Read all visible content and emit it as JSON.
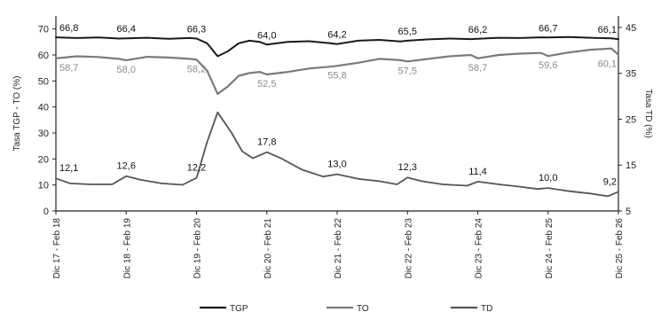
{
  "chart_data": {
    "type": "line",
    "x_categories": [
      "Dic 17 - Feb 18",
      "Dic 18 - Feb 19",
      "Dic 19 - Feb 20",
      "Dic 20 - Feb 21",
      "Dic 21 - Feb 22",
      "Dic 22 - Feb 23",
      "Dic 23 - Feb 24",
      "Dic 24 - Feb 25",
      "Dic 25 - Feb 26"
    ],
    "ylabel_left": "Tasa TGP - TO (%)",
    "ylabel_right": "Tasa TD (%)",
    "ylim_left": [
      0,
      75
    ],
    "yticks_left": [
      0,
      10,
      20,
      30,
      40,
      50,
      60,
      70
    ],
    "ylim_right": [
      5,
      47.5
    ],
    "yticks_right": [
      5,
      15,
      25,
      35,
      45
    ],
    "series": [
      {
        "name": "TGP",
        "axis": "left",
        "color": "#1a1a1a",
        "labels": [
          "66,8",
          "66,4",
          "66,3",
          "64,0",
          "64,2",
          "65,5",
          "66,2",
          "66,7",
          "66,1"
        ],
        "x": [
          0,
          0.3,
          0.6,
          0.9,
          1,
          1.3,
          1.6,
          1.9,
          2,
          2.15,
          2.3,
          2.45,
          2.6,
          2.75,
          2.9,
          3,
          3.3,
          3.6,
          3.9,
          4,
          4.3,
          4.6,
          4.9,
          5,
          5.3,
          5.6,
          5.9,
          6,
          6.3,
          6.6,
          6.9,
          7,
          7.3,
          7.6,
          7.9,
          8
        ],
        "y": [
          66.8,
          66.5,
          66.7,
          66.3,
          66.4,
          66.6,
          66.2,
          66.5,
          66.3,
          64.5,
          59.5,
          61.5,
          64.5,
          65.5,
          65.0,
          64.0,
          65.0,
          65.3,
          64.5,
          64.2,
          65.5,
          65.8,
          65.2,
          65.5,
          66.0,
          66.3,
          66.1,
          66.2,
          66.6,
          66.5,
          66.8,
          66.7,
          66.9,
          66.6,
          66.4,
          66.1
        ]
      },
      {
        "name": "TO",
        "axis": "left",
        "color": "#7a7a7a",
        "labels": [
          "58,7",
          "58,0",
          "58,2",
          "52,5",
          "55,8",
          "57,5",
          "58,7",
          "59,6",
          "60,1"
        ],
        "x": [
          0,
          0.3,
          0.6,
          0.9,
          1,
          1.3,
          1.6,
          1.9,
          2,
          2.15,
          2.3,
          2.45,
          2.6,
          2.75,
          2.9,
          3,
          3.3,
          3.6,
          3.9,
          4,
          4.3,
          4.6,
          4.9,
          5,
          5.3,
          5.6,
          5.9,
          6,
          6.3,
          6.6,
          6.9,
          7,
          7.3,
          7.6,
          7.9,
          8
        ],
        "y": [
          58.7,
          59.5,
          59.2,
          58.5,
          58.0,
          59.3,
          59.0,
          58.5,
          58.2,
          54.0,
          45.0,
          48.0,
          52.0,
          53.0,
          53.5,
          52.5,
          53.5,
          54.8,
          55.5,
          55.8,
          57.0,
          58.5,
          58.0,
          57.5,
          58.5,
          59.5,
          60.0,
          58.7,
          60.0,
          60.5,
          60.8,
          59.6,
          61.0,
          62.0,
          62.5,
          60.1
        ]
      },
      {
        "name": "TD",
        "axis": "right",
        "color": "#555555",
        "labels": [
          "12,1",
          "12,6",
          "12,2",
          "17,8",
          "13,0",
          "12,3",
          "11,4",
          "10,0",
          "9,2"
        ],
        "x": [
          0,
          0.2,
          0.5,
          0.8,
          1,
          1.2,
          1.5,
          1.8,
          2,
          2.15,
          2.3,
          2.5,
          2.65,
          2.8,
          3,
          3.2,
          3.5,
          3.8,
          4,
          4.3,
          4.6,
          4.85,
          5,
          5.2,
          5.5,
          5.85,
          6,
          6.3,
          6.6,
          6.85,
          7,
          7.3,
          7.6,
          7.85,
          8
        ],
        "y": [
          12.1,
          11.0,
          10.8,
          10.8,
          12.6,
          11.8,
          11.0,
          10.7,
          12.2,
          20.0,
          26.5,
          22.0,
          18.0,
          16.5,
          17.8,
          16.5,
          14.0,
          12.5,
          13.0,
          12.0,
          11.5,
          10.8,
          12.3,
          11.5,
          10.8,
          10.5,
          11.4,
          10.8,
          10.3,
          9.8,
          10.0,
          9.3,
          8.8,
          8.2,
          9.2
        ]
      }
    ],
    "legend": [
      "TGP",
      "TO",
      "TD"
    ],
    "legend_position": "bottom",
    "grid": false
  }
}
